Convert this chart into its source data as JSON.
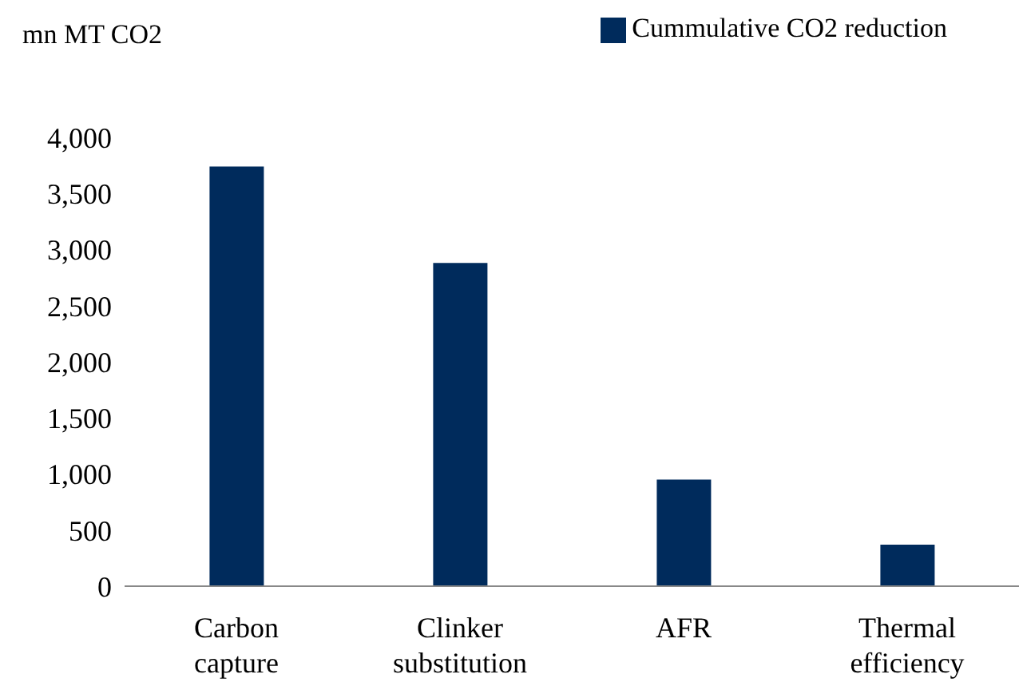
{
  "chart_data": {
    "type": "bar",
    "ylabel": "mn MT CO2",
    "categories": [
      "Carbon capture",
      "Clinker substitution",
      "AFR",
      "Thermal efficiency"
    ],
    "series": [
      {
        "name": "Cummulative CO2 reduction",
        "color": "#002b5c",
        "values": [
          3740,
          2880,
          950,
          370
        ]
      }
    ],
    "ylim": [
      0,
      4000
    ],
    "yticks": [
      0,
      500,
      {
        "value": 1000,
        "label": "1,000"
      },
      {
        "value": 1500,
        "label": "1,500"
      },
      {
        "value": 2000,
        "label": "2,000"
      },
      {
        "value": 2500,
        "label": "2,500"
      },
      {
        "value": 3000,
        "label": "3,000"
      },
      {
        "value": 3500,
        "label": "3,500"
      },
      {
        "value": 4000,
        "label": "4,000"
      }
    ],
    "grid": false,
    "legend": "top right"
  }
}
